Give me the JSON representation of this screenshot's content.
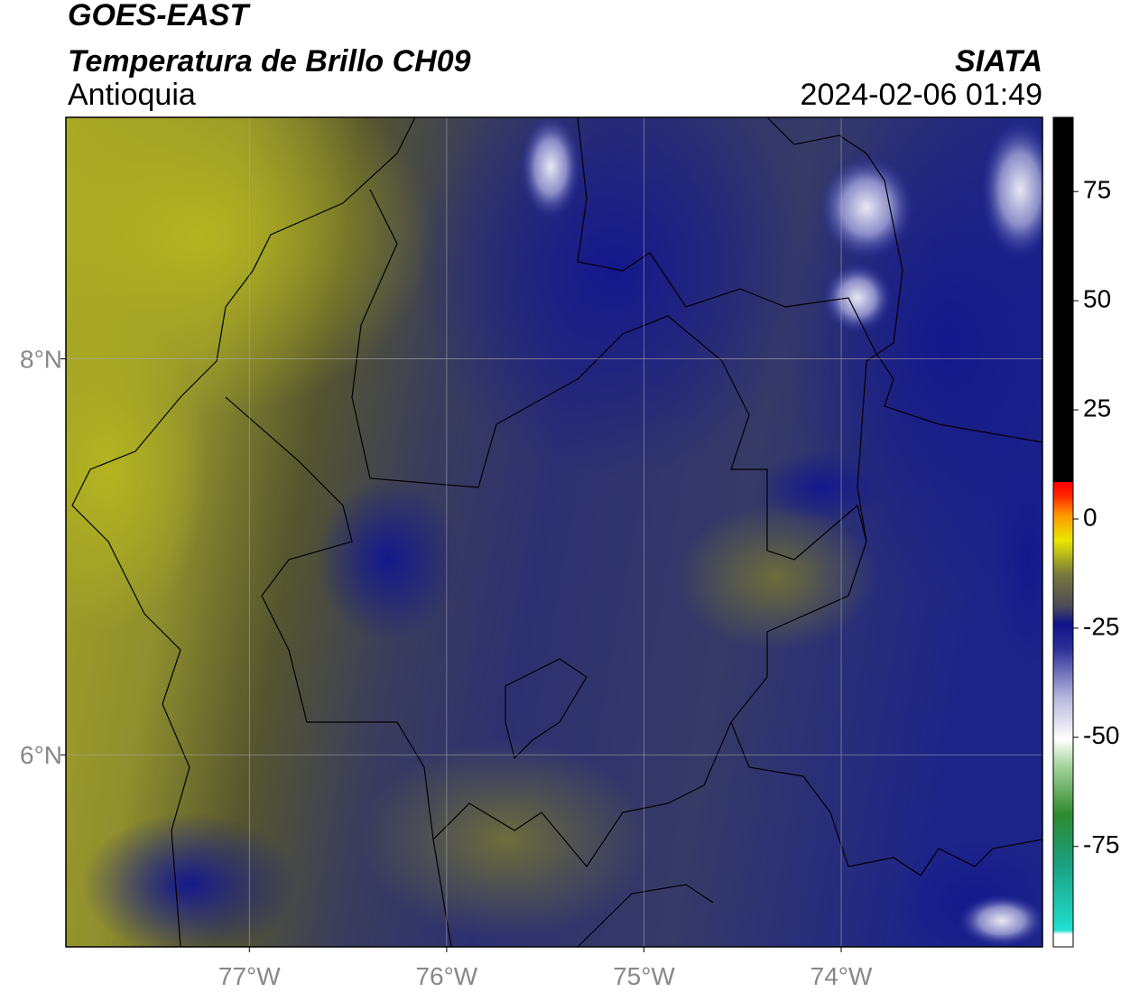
{
  "header": {
    "title": "GOES-EAST",
    "subtitle": "Temperatura de Brillo CH09",
    "region": "Antioquia",
    "source": "SIATA",
    "datetime": "2024-02-06 01:49"
  },
  "map": {
    "xlim": [
      -77.93,
      -72.98
    ],
    "ylim": [
      5.03,
      9.22
    ],
    "xticks": [
      {
        "value": -77,
        "label": "77°W"
      },
      {
        "value": -76,
        "label": "76°W"
      },
      {
        "value": -75,
        "label": "75°W"
      },
      {
        "value": -74,
        "label": "74°W"
      }
    ],
    "yticks": [
      {
        "value": 8,
        "label": "8°N"
      },
      {
        "value": 6,
        "label": "6°N"
      }
    ],
    "grid": true
  },
  "colorbar": {
    "lim": [
      -98,
      92
    ],
    "ticks": [
      75,
      50,
      25,
      0,
      -25,
      -50,
      -75
    ]
  }
}
